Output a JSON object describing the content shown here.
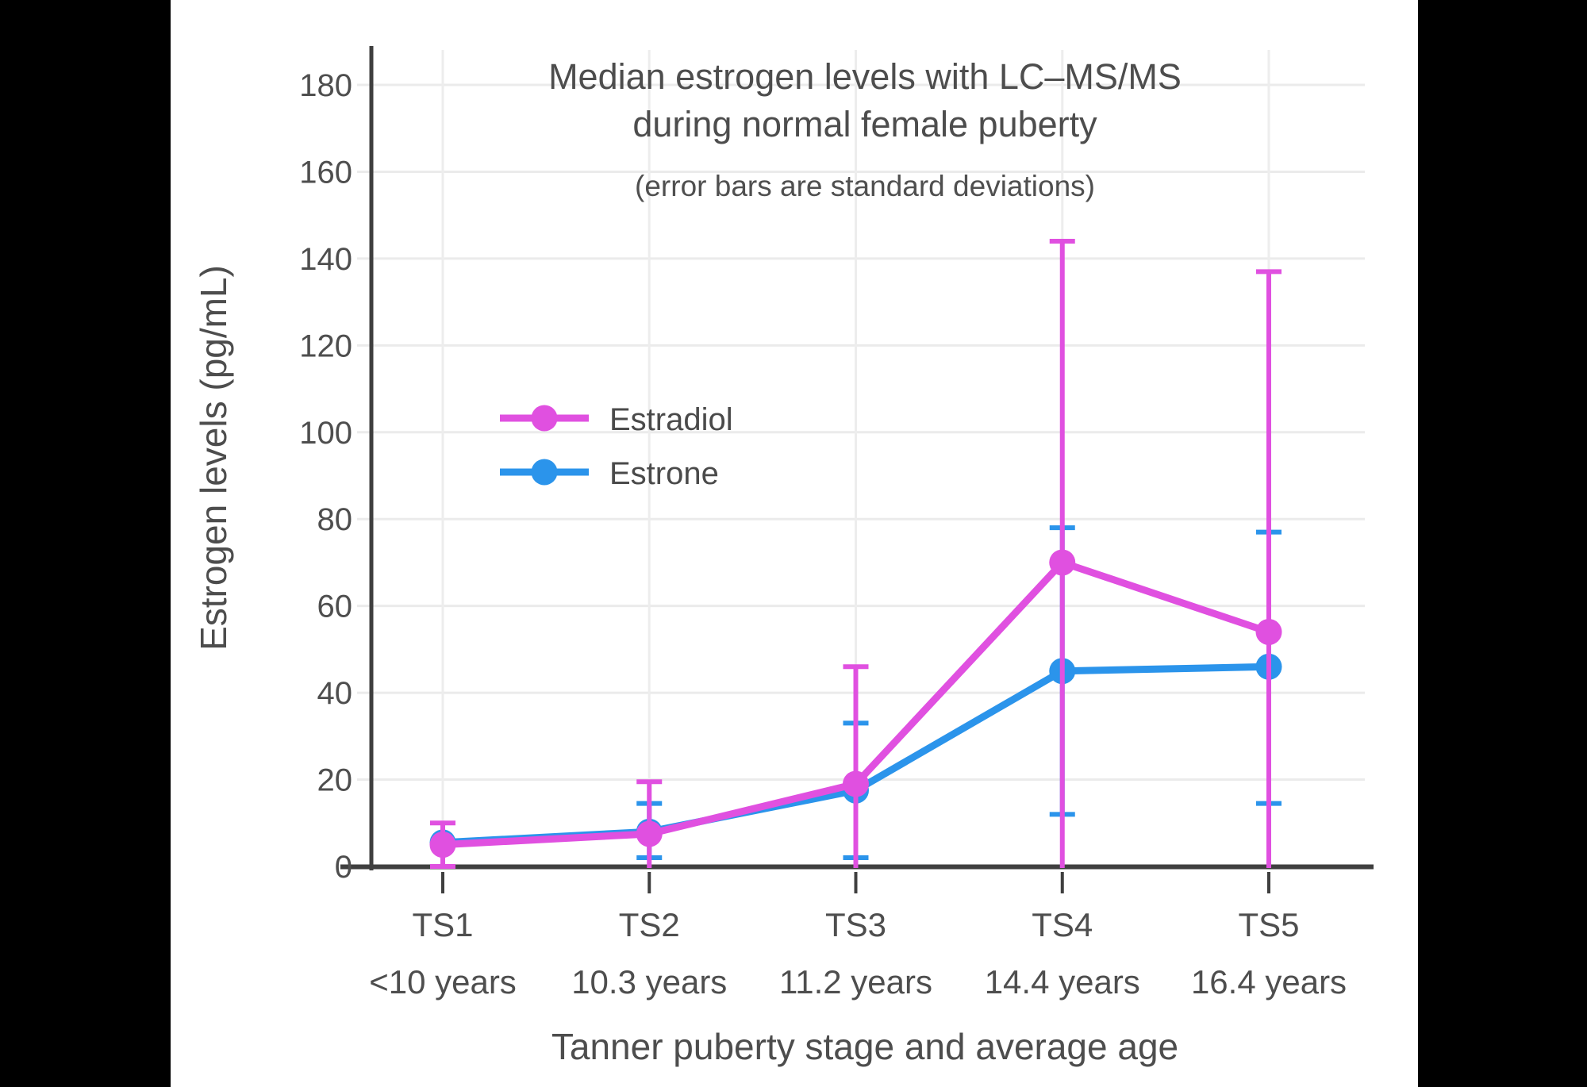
{
  "window": {
    "background": "#000000",
    "panel_background": "#ffffff"
  },
  "chart_data": {
    "type": "line",
    "title": "Median estrogen levels with LC–MS/MS during normal female puberty",
    "title_lines": [
      "Median estrogen levels with LC–MS/MS",
      "during normal female puberty"
    ],
    "subtitle": "(error bars are standard deviations)",
    "xlabel": "Tanner puberty stage and average age",
    "ylabel": "Estrogen levels (pg/mL)",
    "categories": [
      "TS1",
      "TS2",
      "TS3",
      "TS4",
      "TS5"
    ],
    "category_ages": [
      "<10 years",
      "10.3 years",
      "11.2 years",
      "14.4 years",
      "16.4 years"
    ],
    "ylim": [
      0,
      190
    ],
    "yticks": [
      0,
      20,
      40,
      60,
      80,
      100,
      120,
      140,
      160,
      180
    ],
    "grid": true,
    "legend_position": "inside-upper-left",
    "axis_color": "#3f3f3f",
    "grid_color": "#ebebeb",
    "text_color": "#4e4e4e",
    "series": [
      {
        "name": "Estrone",
        "color": "#2b94eb",
        "values": [
          5.5,
          8,
          17.5,
          45,
          46
        ],
        "error_high": [
          null,
          14.5,
          33,
          78,
          77
        ],
        "error_low": [
          null,
          2,
          2,
          12,
          14.5
        ]
      },
      {
        "name": "Estradiol",
        "color": "#e050e0",
        "values": [
          5,
          7.5,
          19,
          70,
          54
        ],
        "error_high": [
          10,
          19.5,
          46,
          144,
          137
        ],
        "error_low": [
          0,
          null,
          null,
          null,
          null
        ]
      }
    ]
  },
  "legend": {
    "items": [
      "Estradiol",
      "Estrone"
    ]
  }
}
